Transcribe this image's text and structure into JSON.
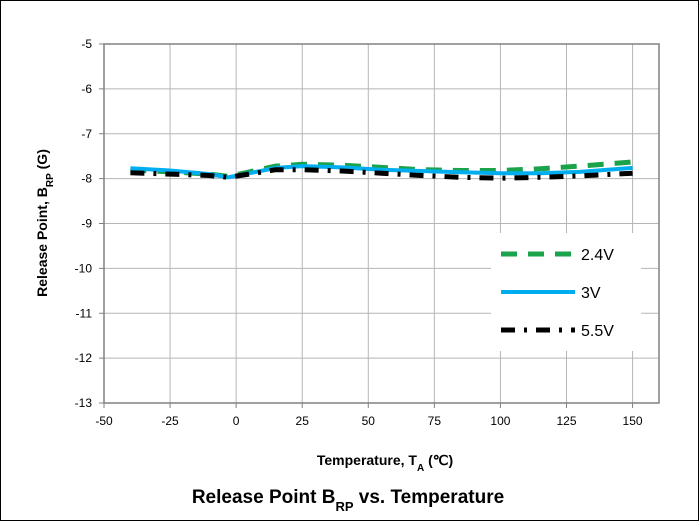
{
  "chart_data": {
    "type": "line",
    "title": "Release Point B",
    "title_sub": "RP",
    "title_suffix": " vs. Temperature",
    "xlabel": "Temperature, T",
    "xlabel_sub": "A",
    "xlabel_suffix": " (℃)",
    "ylabel": "Release Point, B",
    "ylabel_sub": "RP",
    "ylabel_suffix": " (G)",
    "xlim": [
      -50,
      160
    ],
    "ylim": [
      -13,
      -5
    ],
    "xticks": [
      -50,
      -25,
      0,
      25,
      50,
      75,
      100,
      125,
      150
    ],
    "yticks": [
      -13,
      -12,
      -11,
      -10,
      -9,
      -8,
      -7,
      -6,
      -5
    ],
    "grid": true,
    "legend_position": "lower-right",
    "series": [
      {
        "name": "2.4V",
        "color": "#1aa34a",
        "style": "dashed",
        "x": [
          -40,
          -25,
          -10,
          -3,
          5,
          15,
          25,
          40,
          55,
          70,
          85,
          100,
          115,
          130,
          150
        ],
        "y": [
          -7.8,
          -7.85,
          -7.9,
          -7.95,
          -7.85,
          -7.72,
          -7.68,
          -7.7,
          -7.75,
          -7.8,
          -7.82,
          -7.82,
          -7.78,
          -7.72,
          -7.63
        ]
      },
      {
        "name": "3V",
        "color": "#00aeef",
        "style": "solid",
        "x": [
          -40,
          -25,
          -10,
          -3,
          5,
          15,
          25,
          40,
          55,
          70,
          85,
          100,
          115,
          130,
          150
        ],
        "y": [
          -7.77,
          -7.82,
          -7.9,
          -7.97,
          -7.88,
          -7.76,
          -7.72,
          -7.75,
          -7.8,
          -7.83,
          -7.86,
          -7.88,
          -7.88,
          -7.85,
          -7.76
        ]
      },
      {
        "name": "5.5V",
        "color": "#000000",
        "style": "dashdot",
        "x": [
          -40,
          -25,
          -10,
          -3,
          5,
          15,
          25,
          40,
          55,
          70,
          85,
          100,
          115,
          130,
          150
        ],
        "y": [
          -7.87,
          -7.9,
          -7.93,
          -7.97,
          -7.9,
          -7.8,
          -7.8,
          -7.83,
          -7.88,
          -7.93,
          -7.97,
          -7.99,
          -7.97,
          -7.94,
          -7.88
        ]
      }
    ]
  }
}
